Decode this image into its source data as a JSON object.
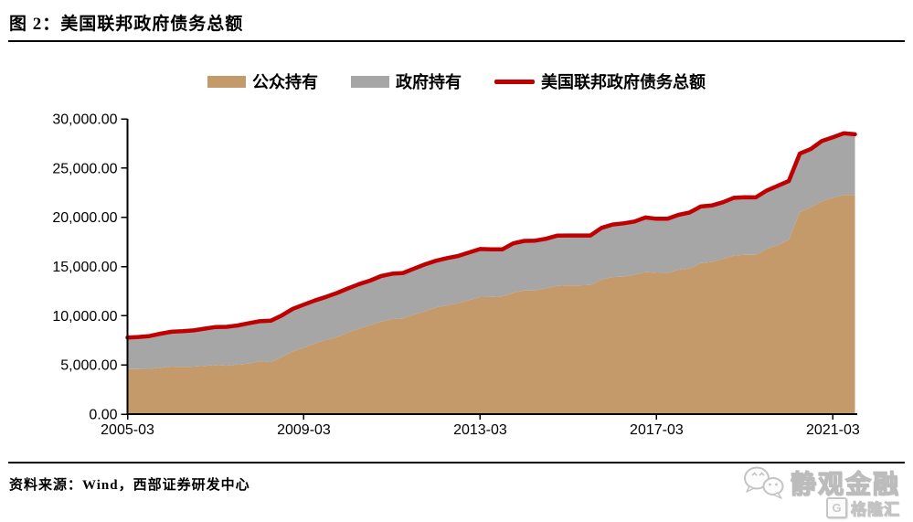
{
  "title": "图 2：美国联邦政府债务总额",
  "source": "资料来源：Wind，西部证券研发中心",
  "legend": [
    {
      "label": "公众持有",
      "color": "#C59A6A",
      "type": "area"
    },
    {
      "label": "政府持有",
      "color": "#A6A6A6",
      "type": "area"
    },
    {
      "label": "美国联邦政府债务总额",
      "color": "#C00000",
      "type": "line"
    }
  ],
  "watermark": {
    "wechat_name": "静观金融",
    "platform_name": "格隆汇",
    "platform_letter": "G"
  },
  "chart_data": {
    "type": "area",
    "stacked": true,
    "grid": false,
    "legend_position": "top-center",
    "title": "美国联邦政府债务总额",
    "xlabel": "",
    "ylabel": "",
    "ylim": [
      0,
      30000
    ],
    "ytick_step": 5000,
    "ytick_labels": [
      "0.00",
      "5,000.00",
      "10,000.00",
      "15,000.00",
      "20,000.00",
      "25,000.00",
      "30,000.00"
    ],
    "xtick_labels": [
      "2005-03",
      "2009-03",
      "2013-03",
      "2017-03",
      "2021-03"
    ],
    "xtick_indices": [
      0,
      16,
      32,
      48,
      64
    ],
    "x": [
      "2005-03",
      "2005-06",
      "2005-09",
      "2005-12",
      "2006-03",
      "2006-06",
      "2006-09",
      "2006-12",
      "2007-03",
      "2007-06",
      "2007-09",
      "2007-12",
      "2008-03",
      "2008-06",
      "2008-09",
      "2008-12",
      "2009-03",
      "2009-06",
      "2009-09",
      "2009-12",
      "2010-03",
      "2010-06",
      "2010-09",
      "2010-12",
      "2011-03",
      "2011-06",
      "2011-09",
      "2011-12",
      "2012-03",
      "2012-06",
      "2012-09",
      "2012-12",
      "2013-03",
      "2013-06",
      "2013-09",
      "2013-12",
      "2014-03",
      "2014-06",
      "2014-09",
      "2014-12",
      "2015-03",
      "2015-06",
      "2015-09",
      "2015-12",
      "2016-03",
      "2016-06",
      "2016-09",
      "2016-12",
      "2017-03",
      "2017-06",
      "2017-09",
      "2017-12",
      "2018-03",
      "2018-06",
      "2018-09",
      "2018-12",
      "2019-03",
      "2019-06",
      "2019-09",
      "2019-12",
      "2020-03",
      "2020-06",
      "2020-09",
      "2020-12",
      "2021-03",
      "2021-06",
      "2021-09"
    ],
    "series": [
      {
        "name": "公众持有",
        "type": "area",
        "color": "#C59A6A",
        "values": [
          4567,
          4577,
          4601,
          4714,
          4834,
          4796,
          4829,
          4901,
          4987,
          4911,
          5049,
          5136,
          5357,
          5285,
          5809,
          6369,
          6751,
          7170,
          7552,
          7811,
          8290,
          8672,
          9023,
          9390,
          9654,
          9742,
          10127,
          10448,
          10851,
          11054,
          11269,
          11578,
          11888,
          11901,
          11976,
          12312,
          12580,
          12571,
          12785,
          13024,
          13084,
          13081,
          13124,
          13673,
          13925,
          13972,
          14173,
          14434,
          14350,
          14343,
          14673,
          14802,
          15335,
          15451,
          15761,
          16101,
          16186,
          16184,
          16805,
          17168,
          17719,
          20530,
          21018,
          21616,
          21974,
          22284,
          22280
        ]
      },
      {
        "name": "政府持有",
        "type": "area",
        "color": "#A6A6A6",
        "values": [
          3209,
          3260,
          3331,
          3456,
          3537,
          3624,
          3678,
          3779,
          3862,
          3957,
          3959,
          4093,
          4081,
          4207,
          4216,
          4331,
          4376,
          4375,
          4358,
          4500,
          4483,
          4531,
          4539,
          4635,
          4616,
          4601,
          4663,
          4775,
          4731,
          4802,
          4797,
          4855,
          4883,
          4837,
          4762,
          5040,
          5021,
          5062,
          5039,
          5117,
          5068,
          5071,
          5027,
          5250,
          5340,
          5410,
          5400,
          5543,
          5496,
          5502,
          5571,
          5691,
          5755,
          5744,
          5755,
          5873,
          5842,
          5839,
          5914,
          6033,
          5968,
          5947,
          5927,
          6132,
          6159,
          6245,
          6149
        ]
      },
      {
        "name": "美国联邦政府债务总额",
        "type": "line",
        "color": "#C00000",
        "values": [
          7776,
          7837,
          7933,
          8170,
          8371,
          8420,
          8507,
          8680,
          8849,
          8868,
          9008,
          9229,
          9438,
          9492,
          10025,
          10700,
          11127,
          11545,
          11910,
          12311,
          12773,
          13203,
          13562,
          14025,
          14270,
          14343,
          14790,
          15223,
          15582,
          15856,
          16066,
          16433,
          16771,
          16738,
          16738,
          17352,
          17601,
          17633,
          17824,
          18141,
          18152,
          18152,
          18151,
          18922,
          19265,
          19382,
          19573,
          19977,
          19846,
          19845,
          20245,
          20493,
          21090,
          21195,
          21516,
          21974,
          22028,
          22023,
          22719,
          23201,
          23687,
          26477,
          26945,
          27748,
          28133,
          28529,
          28429
        ]
      }
    ]
  }
}
